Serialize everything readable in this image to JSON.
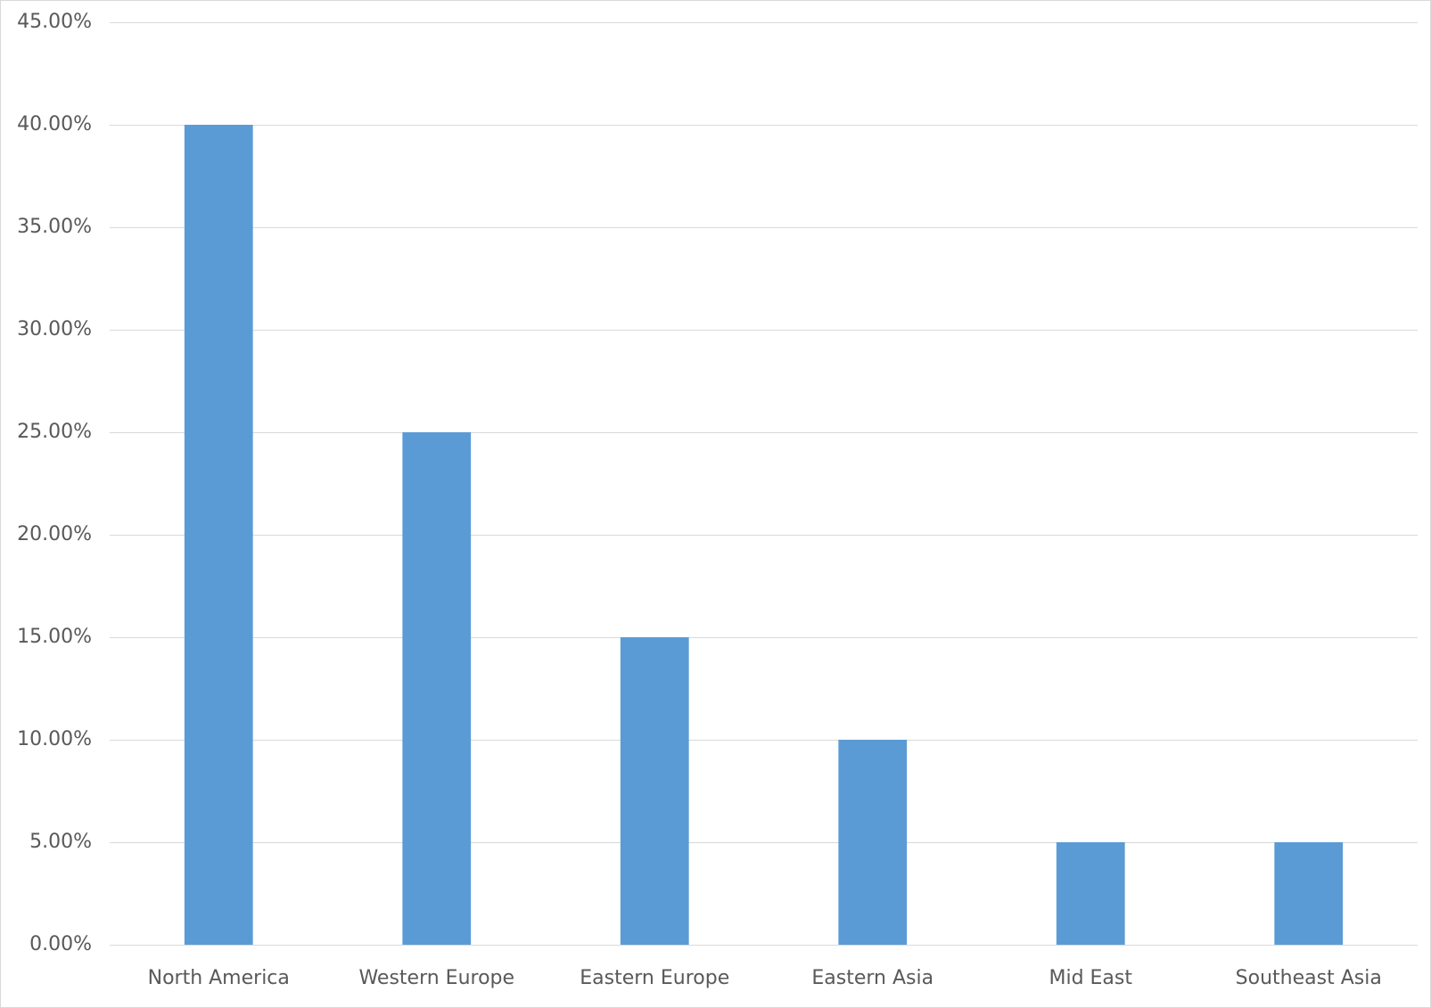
{
  "chart_data": {
    "type": "bar",
    "categories": [
      "North America",
      "Western Europe",
      "Eastern Europe",
      "Eastern Asia",
      "Mid East",
      "Southeast Asia"
    ],
    "values": [
      40,
      25,
      15,
      10,
      5,
      5
    ],
    "color": "#5b9bd5",
    "ylim": [
      0,
      45
    ],
    "yticks": [
      {
        "value": 0,
        "label": "0.00%"
      },
      {
        "value": 5,
        "label": "5.00%"
      },
      {
        "value": 10,
        "label": "10.00%"
      },
      {
        "value": 15,
        "label": "15.00%"
      },
      {
        "value": 20,
        "label": "20.00%"
      },
      {
        "value": 25,
        "label": "25.00%"
      },
      {
        "value": 30,
        "label": "30.00%"
      },
      {
        "value": 35,
        "label": "35.00%"
      },
      {
        "value": 40,
        "label": "40.00%"
      },
      {
        "value": 45,
        "label": "45.00%"
      }
    ],
    "grid": true
  }
}
